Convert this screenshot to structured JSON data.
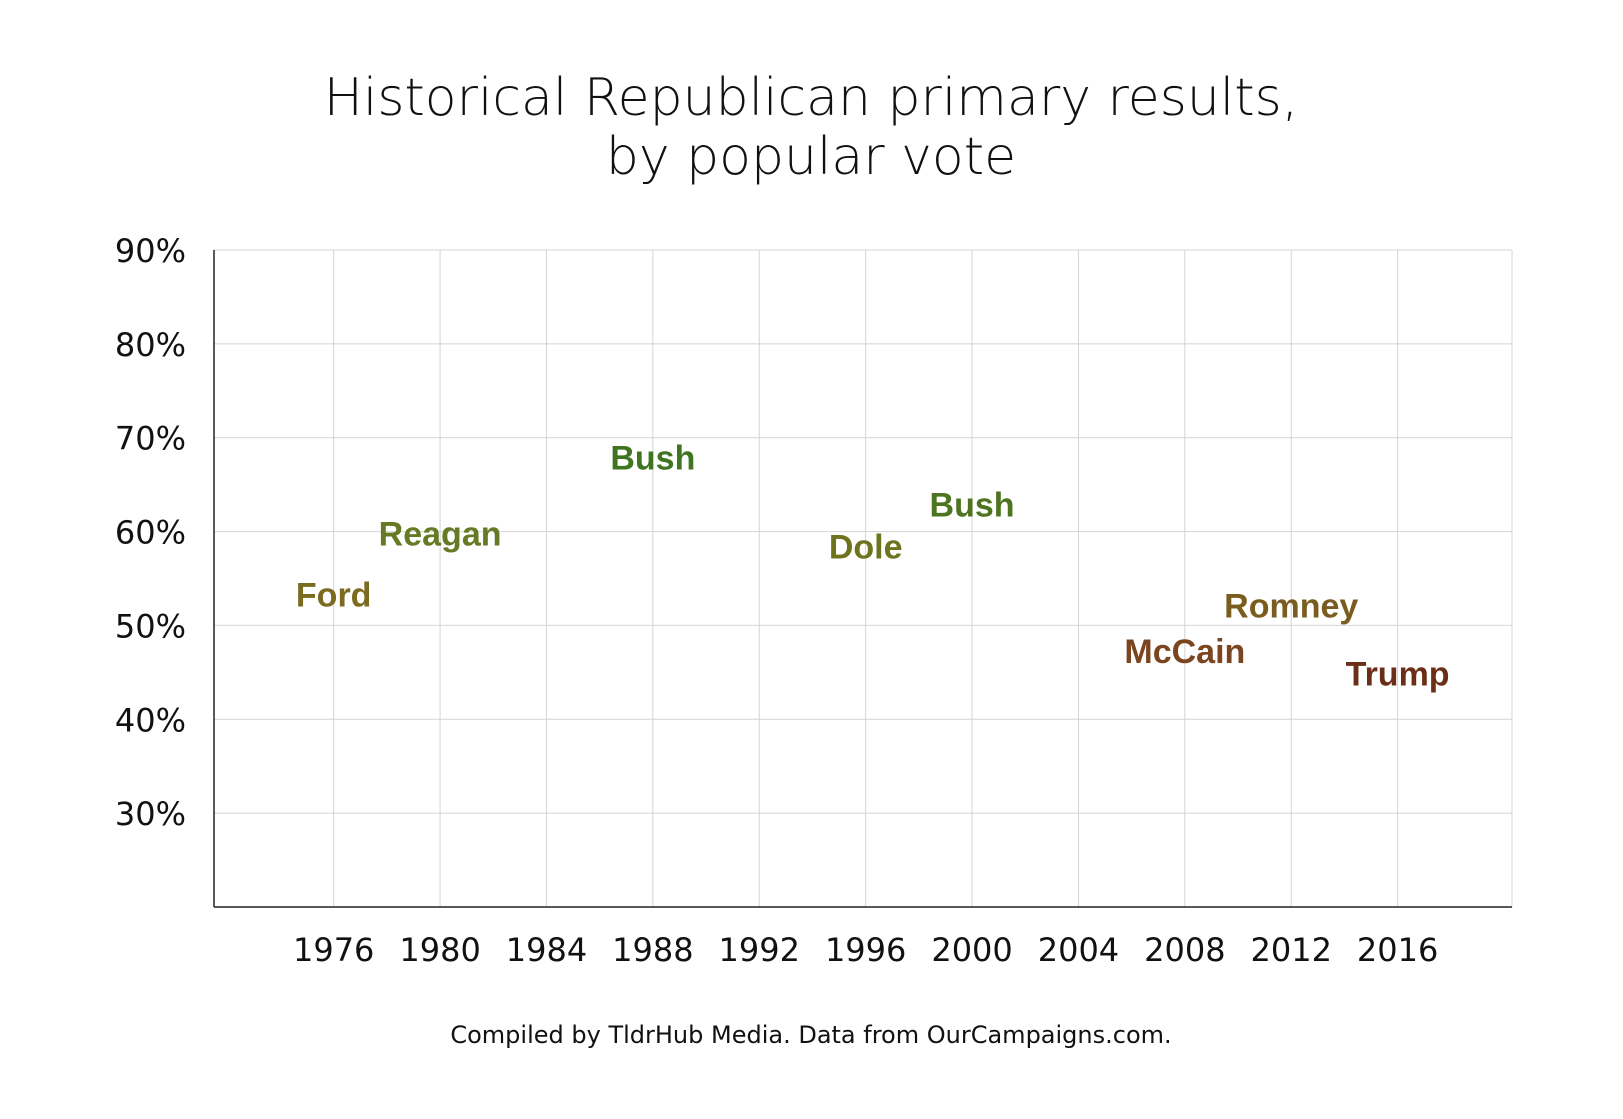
{
  "chart_data": {
    "type": "scatter",
    "title_lines": [
      "Historical Republican primary results,",
      "by popular vote"
    ],
    "xlabel": "",
    "ylabel": "",
    "x_ticks": [
      1976,
      1980,
      1984,
      1988,
      1992,
      1996,
      2000,
      2004,
      2008,
      2012,
      2016
    ],
    "y_ticks": [
      30,
      40,
      50,
      60,
      70,
      80,
      90
    ],
    "y_tick_suffix": "%",
    "xlim": [
      1971.5,
      2020.3
    ],
    "ylim": [
      20,
      90
    ],
    "grid": true,
    "points": [
      {
        "x": 1976,
        "y": 53.3,
        "label": "Ford",
        "color": "#7a6b1f"
      },
      {
        "x": 1980,
        "y": 59.8,
        "label": "Reagan",
        "color": "#667a24"
      },
      {
        "x": 1988,
        "y": 67.9,
        "label": "Bush",
        "color": "#3f7420"
      },
      {
        "x": 1996,
        "y": 58.4,
        "label": "Dole",
        "color": "#6f731d"
      },
      {
        "x": 2000,
        "y": 62.9,
        "label": "Bush",
        "color": "#4d741f"
      },
      {
        "x": 2008,
        "y": 47.3,
        "label": "McCain",
        "color": "#7a451f"
      },
      {
        "x": 2012,
        "y": 52.1,
        "label": "Romney",
        "color": "#7a5c1f"
      },
      {
        "x": 2016,
        "y": 44.9,
        "label": "Trump",
        "color": "#6b2f17"
      }
    ]
  },
  "source": "Compiled by TldrHub Media. Data from OurCampaigns.com."
}
